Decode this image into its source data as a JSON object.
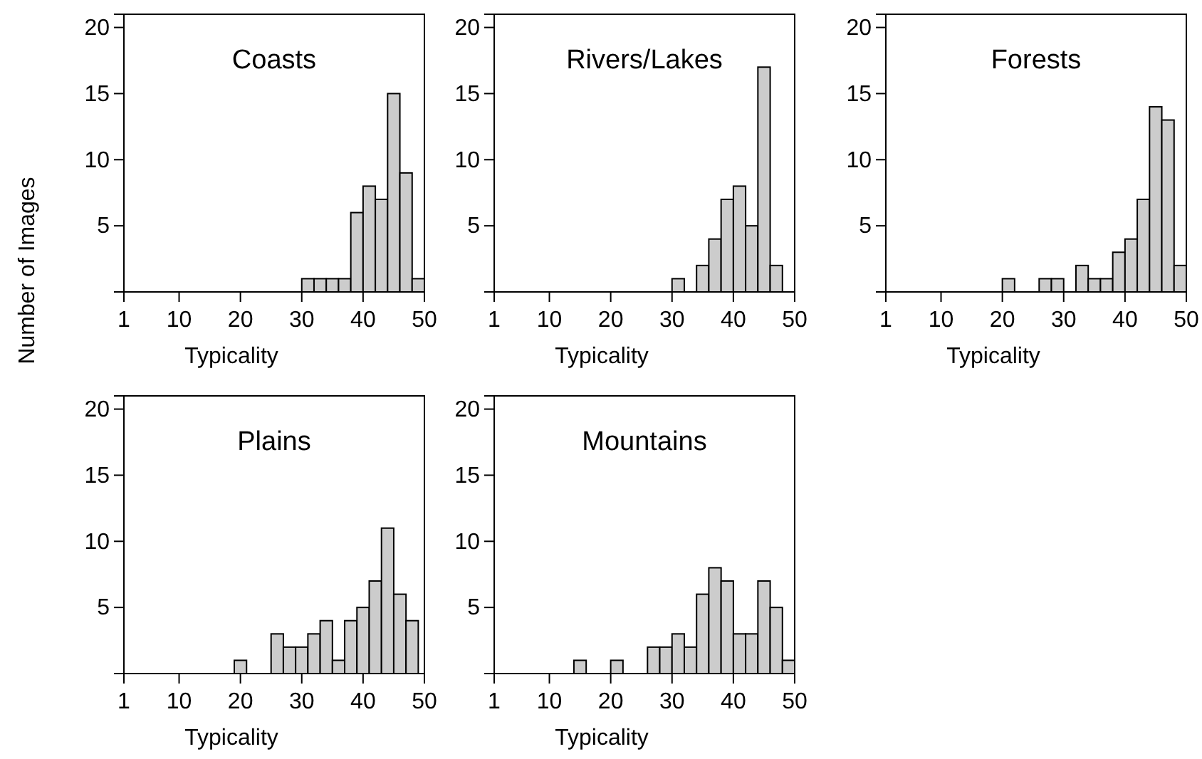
{
  "chart_data": [
    {
      "type": "histogram",
      "title": "Coasts",
      "xlabel": "Typicality",
      "ylabel": "Number of Images",
      "bins": [
        30,
        32,
        34,
        36,
        38,
        40,
        42,
        44,
        46,
        48,
        50
      ],
      "values": [
        1,
        1,
        1,
        1,
        6,
        8,
        7,
        15,
        9,
        1
      ],
      "color": "#cccccc",
      "xlim": [
        1,
        50
      ],
      "xticks": [
        1,
        10,
        20,
        30,
        40,
        50
      ],
      "ylim": [
        0,
        21
      ],
      "yticks": [
        5,
        10,
        15,
        20
      ]
    },
    {
      "type": "histogram",
      "title": "Rivers/Lakes",
      "xlabel": "Typicality",
      "bins": [
        30,
        32,
        34,
        36,
        38,
        40,
        42,
        44,
        46,
        48
      ],
      "values": [
        1,
        0,
        2,
        4,
        7,
        8,
        5,
        17,
        2
      ],
      "color": "#cccccc",
      "xlim": [
        1,
        50
      ],
      "xticks": [
        1,
        10,
        20,
        30,
        40,
        50
      ],
      "ylim": [
        0,
        21
      ],
      "yticks": [
        5,
        10,
        15,
        20
      ]
    },
    {
      "type": "histogram",
      "title": "Forests",
      "xlabel": "Typicality",
      "bins": [
        20,
        22,
        24,
        26,
        28,
        30,
        32,
        34,
        36,
        38,
        40,
        42,
        44,
        46,
        48,
        50
      ],
      "values": [
        1,
        0,
        0,
        1,
        1,
        0,
        2,
        1,
        1,
        3,
        4,
        7,
        14,
        13,
        2
      ],
      "color": "#cccccc",
      "xlim": [
        1,
        50
      ],
      "xticks": [
        1,
        10,
        20,
        30,
        40,
        50
      ],
      "ylim": [
        0,
        21
      ],
      "yticks": [
        5,
        10,
        15,
        20
      ]
    },
    {
      "type": "histogram",
      "title": "Plains",
      "xlabel": "Typicality",
      "bins": [
        19,
        21,
        23,
        25,
        27,
        29,
        31,
        33,
        35,
        37,
        39,
        41,
        43,
        45,
        47,
        49
      ],
      "values": [
        1,
        0,
        0,
        3,
        2,
        2,
        3,
        4,
        1,
        4,
        5,
        7,
        11,
        6,
        4
      ],
      "color": "#cccccc",
      "xlim": [
        1,
        50
      ],
      "xticks": [
        1,
        10,
        20,
        30,
        40,
        50
      ],
      "ylim": [
        0,
        21
      ],
      "yticks": [
        5,
        10,
        15,
        20
      ]
    },
    {
      "type": "histogram",
      "title": "Mountains",
      "xlabel": "Typicality",
      "bins": [
        14,
        16,
        18,
        20,
        22,
        24,
        26,
        28,
        30,
        32,
        34,
        36,
        38,
        40,
        42,
        44,
        46,
        48,
        50
      ],
      "values": [
        1,
        0,
        0,
        1,
        0,
        0,
        2,
        2,
        3,
        2,
        6,
        8,
        7,
        3,
        3,
        7,
        5,
        1
      ],
      "color": "#cccccc",
      "xlim": [
        1,
        50
      ],
      "xticks": [
        1,
        10,
        20,
        30,
        40,
        50
      ],
      "ylim": [
        0,
        21
      ],
      "yticks": [
        5,
        10,
        15,
        20
      ]
    }
  ]
}
